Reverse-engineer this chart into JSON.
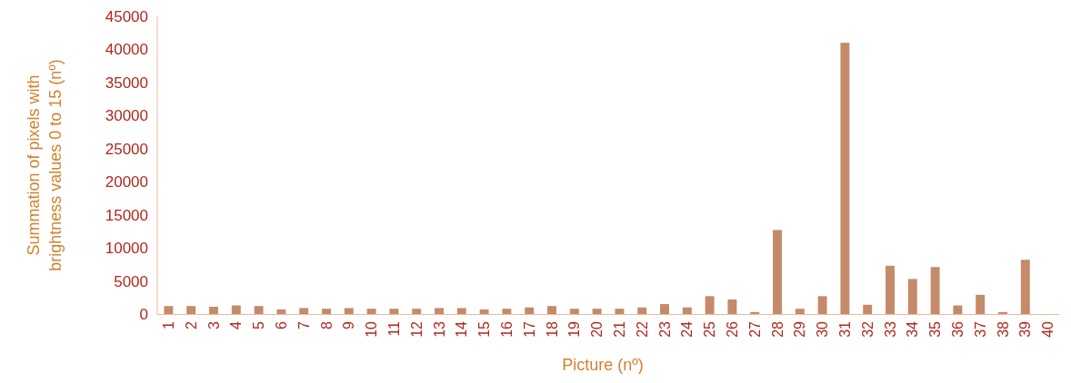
{
  "chart_data": {
    "type": "bar",
    "xlabel": "Picture (nº)",
    "ylabel": "Summation of pixels with brightness values 0 to 15 (nº)",
    "categories": [
      "1",
      "2",
      "3",
      "4",
      "5",
      "6",
      "7",
      "8",
      "9",
      "10",
      "11",
      "12",
      "13",
      "14",
      "15",
      "16",
      "17",
      "18",
      "19",
      "20",
      "21",
      "22",
      "23",
      "24",
      "25",
      "26",
      "27",
      "28",
      "29",
      "30",
      "31",
      "32",
      "33",
      "34",
      "35",
      "36",
      "37",
      "38",
      "39",
      "40"
    ],
    "values": [
      1200,
      1200,
      1100,
      1300,
      1200,
      700,
      900,
      800,
      900,
      800,
      800,
      800,
      900,
      900,
      700,
      800,
      1000,
      1200,
      800,
      800,
      800,
      1000,
      1500,
      1000,
      2700,
      2200,
      300,
      12700,
      800,
      2700,
      41000,
      1400,
      7300,
      5300,
      7100,
      1300,
      2900,
      300,
      8200,
      0
    ],
    "color": "#c48a6a",
    "ylim": [
      0,
      45000
    ],
    "yticks": [
      0,
      5000,
      10000,
      15000,
      20000,
      25000,
      30000,
      35000,
      40000,
      45000
    ],
    "grid": false
  }
}
